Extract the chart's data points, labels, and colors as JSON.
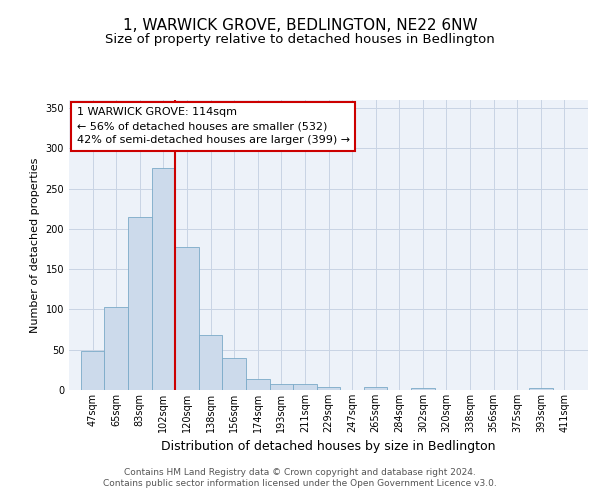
{
  "title": "1, WARWICK GROVE, BEDLINGTON, NE22 6NW",
  "subtitle": "Size of property relative to detached houses in Bedlington",
  "xlabel": "Distribution of detached houses by size in Bedlington",
  "ylabel": "Number of detached properties",
  "bar_color": "#ccdaeb",
  "bar_edge_color": "#7aaac8",
  "grid_color": "#c8d4e4",
  "background_color": "#edf2f9",
  "property_line_x": 119,
  "property_line_color": "#cc0000",
  "annotation_text": "1 WARWICK GROVE: 114sqm\n← 56% of detached houses are smaller (532)\n42% of semi-detached houses are larger (399) →",
  "annotation_box_color": "#cc0000",
  "ylim": [
    0,
    360
  ],
  "yticks": [
    0,
    50,
    100,
    150,
    200,
    250,
    300,
    350
  ],
  "bin_edges": [
    47,
    65,
    83,
    101,
    119,
    137,
    155,
    173,
    191,
    209,
    227,
    245,
    263,
    281,
    299,
    317,
    335,
    353,
    371,
    389,
    407,
    425
  ],
  "bar_heights": [
    48,
    103,
    215,
    275,
    178,
    68,
    40,
    14,
    8,
    8,
    4,
    0,
    4,
    0,
    3,
    0,
    0,
    0,
    0,
    3,
    0
  ],
  "tick_labels": [
    "47sqm",
    "65sqm",
    "83sqm",
    "102sqm",
    "120sqm",
    "138sqm",
    "156sqm",
    "174sqm",
    "193sqm",
    "211sqm",
    "229sqm",
    "247sqm",
    "265sqm",
    "284sqm",
    "302sqm",
    "320sqm",
    "338sqm",
    "356sqm",
    "375sqm",
    "393sqm",
    "411sqm"
  ],
  "footer_text": "Contains HM Land Registry data © Crown copyright and database right 2024.\nContains public sector information licensed under the Open Government Licence v3.0.",
  "title_fontsize": 11,
  "subtitle_fontsize": 9.5,
  "xlabel_fontsize": 9,
  "ylabel_fontsize": 8,
  "tick_fontsize": 7,
  "footer_fontsize": 6.5,
  "annotation_fontsize": 8
}
